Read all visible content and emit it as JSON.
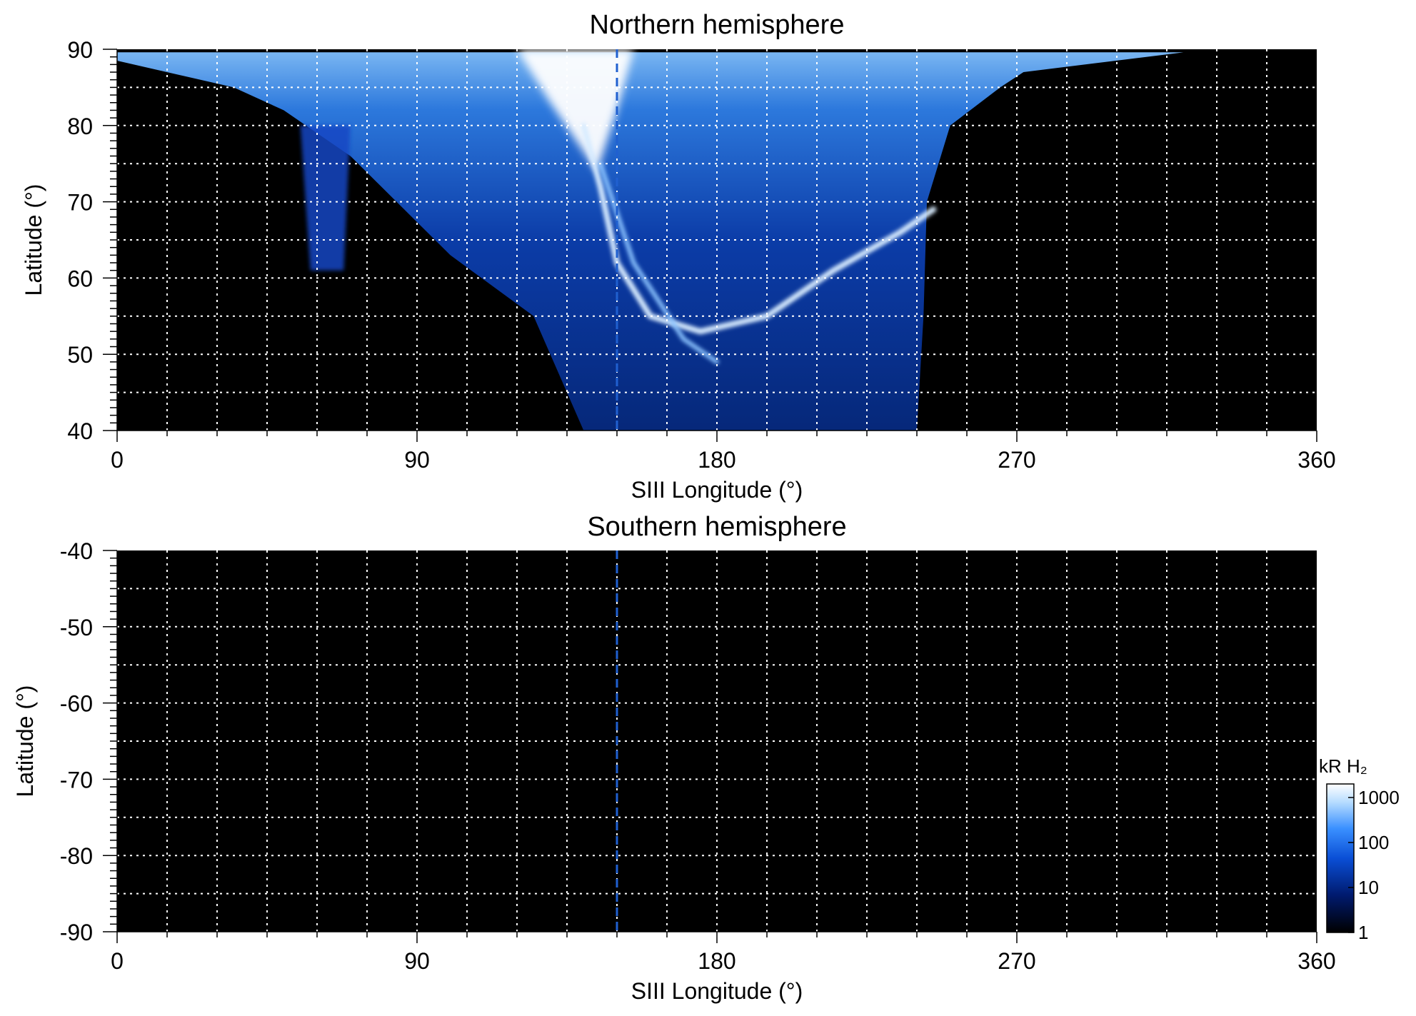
{
  "chart_data": [
    {
      "type": "heatmap",
      "title": "Northern hemisphere",
      "xlabel": "SIII Longitude (°)",
      "ylabel": "Latitude (°)",
      "xlim": [
        0,
        360
      ],
      "ylim": [
        40,
        90
      ],
      "xticks": [
        0,
        90,
        180,
        270,
        360
      ],
      "yticks": [
        40,
        50,
        60,
        70,
        80,
        90
      ],
      "grid": true,
      "grid_x_step": 15,
      "grid_y_step": 5,
      "reference_longitude": 150,
      "emission_extent": {
        "lon_min_at_85": 30,
        "lon_max_at_85": 270,
        "lon_min_at_40": 140,
        "lon_max_at_40": 240
      },
      "features": {
        "bright_polar_patch": {
          "lon": [
            130,
            150
          ],
          "lat": [
            80,
            90
          ]
        },
        "main_oval": [
          {
            "lon": 140,
            "lat": 80
          },
          {
            "lon": 145,
            "lat": 72
          },
          {
            "lon": 150,
            "lat": 62
          },
          {
            "lon": 160,
            "lat": 55
          },
          {
            "lon": 175,
            "lat": 53
          },
          {
            "lon": 195,
            "lat": 55
          },
          {
            "lon": 215,
            "lat": 61
          },
          {
            "lon": 235,
            "lat": 66
          },
          {
            "lon": 245,
            "lat": 69
          }
        ],
        "secondary_arc": [
          {
            "lon": 145,
            "lat": 75
          },
          {
            "lon": 155,
            "lat": 62
          },
          {
            "lon": 170,
            "lat": 52
          },
          {
            "lon": 180,
            "lat": 49
          }
        ],
        "isolated_patch": {
          "lon": [
            55,
            70
          ],
          "lat": [
            61,
            80
          ]
        }
      }
    },
    {
      "type": "heatmap",
      "title": "Southern hemisphere",
      "xlabel": "SIII Longitude (°)",
      "ylabel": "Latitude (°)",
      "xlim": [
        0,
        360
      ],
      "ylim": [
        -90,
        -40
      ],
      "xticks": [
        0,
        90,
        180,
        270,
        360
      ],
      "yticks": [
        -40,
        -50,
        -60,
        -70,
        -80,
        -90
      ],
      "grid": true,
      "grid_x_step": 15,
      "grid_y_step": 5,
      "reference_longitude": 150,
      "emission": "none"
    }
  ],
  "colorbar": {
    "label": "kR H₂",
    "scale": "log",
    "ticks": [
      "1",
      "10",
      "100",
      "1000"
    ],
    "colors": [
      "#000000",
      "#001a6e",
      "#0a4fd6",
      "#3a90ff",
      "#b8ddff",
      "#ffffff"
    ]
  },
  "colors": {
    "background": "#000000",
    "grid": "#ffffff",
    "reference_line": "#2060d0"
  }
}
